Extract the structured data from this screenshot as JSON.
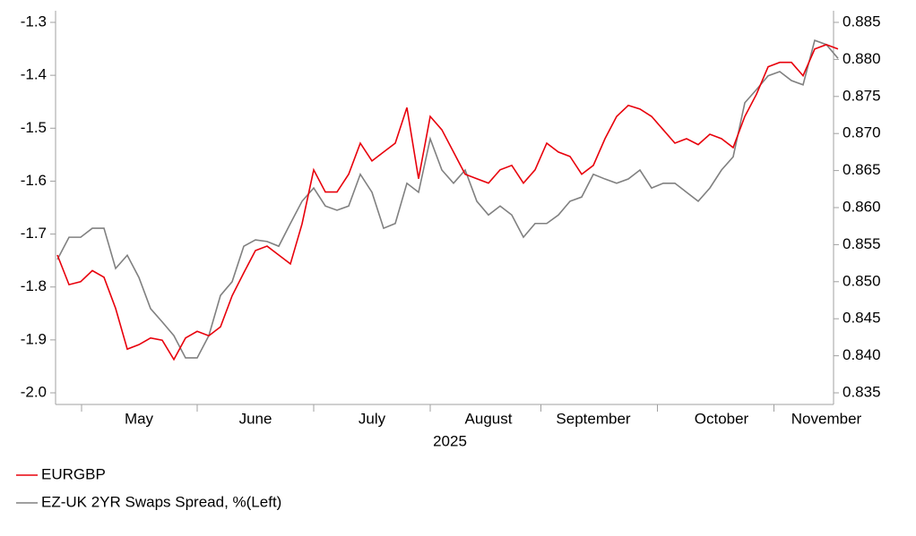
{
  "chart_data": {
    "type": "line",
    "xlabel": "2025",
    "categories": [
      null,
      null,
      null,
      null,
      null,
      null,
      null,
      "May",
      null,
      null,
      null,
      null,
      null,
      null,
      null,
      null,
      null,
      "June",
      null,
      null,
      null,
      null,
      null,
      null,
      null,
      null,
      null,
      "July",
      null,
      null,
      null,
      null,
      null,
      null,
      null,
      null,
      null,
      "August",
      null,
      null,
      null,
      null,
      null,
      null,
      null,
      null,
      "September",
      null,
      null,
      null,
      null,
      null,
      null,
      null,
      null,
      null,
      null,
      "October",
      null,
      null,
      null,
      null,
      null,
      null,
      null,
      null,
      "November",
      null
    ],
    "series": [
      {
        "name": "EURGBP",
        "color": "#e8000b",
        "axis": "y2",
        "values": [
          0.8536,
          0.8496,
          0.85,
          0.8515,
          0.8506,
          0.8464,
          0.8409,
          0.8415,
          0.8424,
          0.8421,
          0.8395,
          0.8424,
          0.8433,
          0.8427,
          0.8439,
          0.8481,
          0.8512,
          0.8542,
          0.8548,
          0.8536,
          0.8524,
          0.8578,
          0.8651,
          0.8621,
          0.8621,
          0.8645,
          0.8687,
          0.8663,
          0.8675,
          0.8687,
          0.8735,
          0.8639,
          0.8723,
          0.8705,
          0.8675,
          0.8645,
          0.8639,
          0.8633,
          0.8651,
          0.8657,
          0.8633,
          0.8651,
          0.8687,
          0.8675,
          0.8669,
          0.8645,
          0.8657,
          0.8693,
          0.8723,
          0.8738,
          0.8733,
          0.8723,
          0.8705,
          0.8687,
          0.8693,
          0.8685,
          0.8699,
          0.8693,
          0.8681,
          0.8723,
          0.8753,
          0.879,
          0.8796,
          0.8796,
          0.8778,
          0.8814,
          0.882,
          0.8814
        ]
      },
      {
        "name": "EZ-UK 2YR Swaps Spread, %(Left)",
        "color": "#808080",
        "axis": "y",
        "values": [
          -1.748,
          -1.706,
          -1.706,
          -1.689,
          -1.689,
          -1.765,
          -1.74,
          -1.782,
          -1.841,
          -1.866,
          -1.892,
          -1.934,
          -1.934,
          -1.892,
          -1.816,
          -1.79,
          -1.723,
          -1.711,
          -1.714,
          -1.723,
          -1.68,
          -1.638,
          -1.613,
          -1.647,
          -1.655,
          -1.647,
          -1.587,
          -1.621,
          -1.689,
          -1.68,
          -1.604,
          -1.621,
          -1.52,
          -1.579,
          -1.604,
          -1.579,
          -1.638,
          -1.664,
          -1.647,
          -1.664,
          -1.706,
          -1.68,
          -1.68,
          -1.664,
          -1.638,
          -1.63,
          -1.587,
          -1.596,
          -1.604,
          -1.596,
          -1.579,
          -1.613,
          -1.604,
          -1.604,
          -1.621,
          -1.638,
          -1.613,
          -1.579,
          -1.554,
          -1.452,
          -1.427,
          -1.401,
          -1.393,
          -1.41,
          -1.418,
          -1.334,
          -1.342,
          -1.368
        ]
      }
    ],
    "ylim": [
      -2.0,
      -1.3
    ],
    "yticks": [
      {
        "value": -2.0,
        "label": "-2.0"
      },
      -1.9,
      -1.8,
      -1.7,
      -1.6,
      -1.5,
      -1.4,
      -1.3
    ],
    "y2lim": [
      0.835,
      0.885
    ],
    "y2ticks": [
      0.835,
      {
        "value": 0.84,
        "label": "0.840"
      },
      0.845,
      {
        "value": 0.85,
        "label": "0.850"
      },
      0.855,
      {
        "value": 0.86,
        "label": "0.860"
      },
      0.865,
      {
        "value": 0.87,
        "label": "0.870"
      },
      0.875,
      {
        "value": 0.88,
        "label": "0.880"
      },
      0.885
    ]
  }
}
